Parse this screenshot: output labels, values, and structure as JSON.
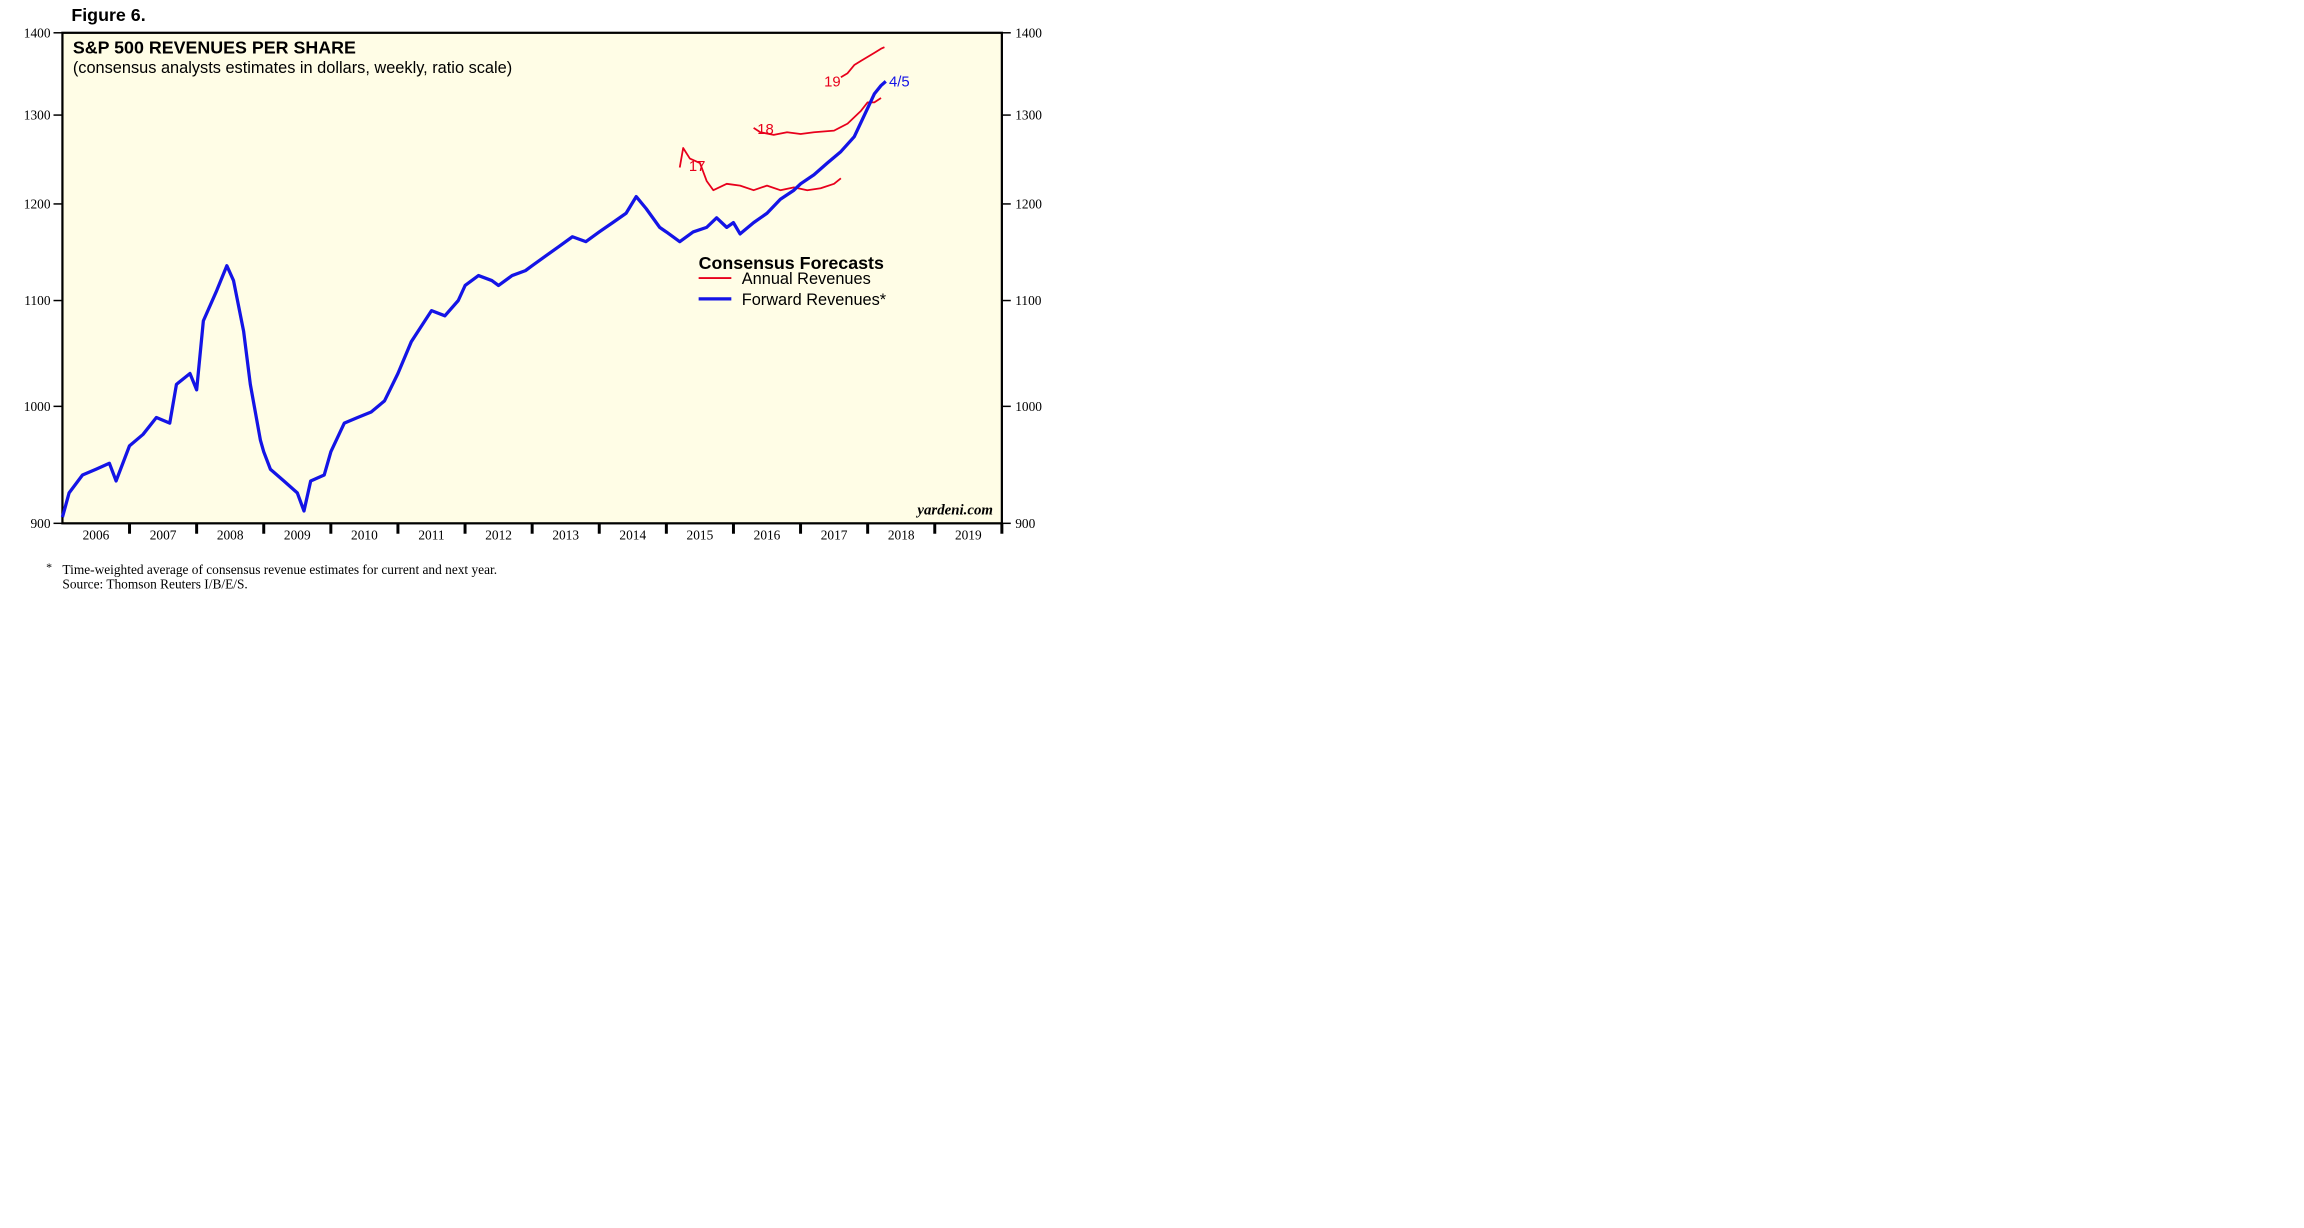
{
  "figure_label": "Figure 6.",
  "chart_data": {
    "type": "line",
    "title": "S&P 500 REVENUES PER SHARE",
    "subtitle": "(consensus analysts estimates in dollars, weekly, ratio scale)",
    "log_scale": true,
    "xlim": [
      2006,
      2020
    ],
    "xticks": [
      {
        "value": 2006.5,
        "label": "2006"
      },
      {
        "value": 2007.5,
        "label": "2007"
      },
      {
        "value": 2008.5,
        "label": "2008"
      },
      {
        "value": 2009.5,
        "label": "2009"
      },
      {
        "value": 2010.5,
        "label": "2010"
      },
      {
        "value": 2011.5,
        "label": "2011"
      },
      {
        "value": 2012.5,
        "label": "2012"
      },
      {
        "value": 2013.5,
        "label": "2013"
      },
      {
        "value": 2014.5,
        "label": "2014"
      },
      {
        "value": 2015.5,
        "label": "2015"
      },
      {
        "value": 2016.5,
        "label": "2016"
      },
      {
        "value": 2017.5,
        "label": "2017"
      },
      {
        "value": 2018.5,
        "label": "2018"
      },
      {
        "value": 2019.5,
        "label": "2019"
      }
    ],
    "ylim": [
      900,
      1400
    ],
    "yticks": [
      900,
      1000,
      1100,
      1200,
      1300,
      1400
    ],
    "legend_title": "Consensus Forecasts",
    "series": [
      {
        "name": "Annual Revenues",
        "color": "#e8001c",
        "width": 1.2,
        "x": [
          2015.2,
          2015.25,
          2015.35,
          2015.5,
          2015.6,
          2015.7,
          2015.9,
          2016.1,
          2016.3,
          2016.5,
          2016.7,
          2016.9,
          2017.1,
          2017.3,
          2017.5,
          2017.6
        ],
        "values": [
          1240,
          1262,
          1250,
          1245,
          1225,
          1215,
          1222,
          1220,
          1215,
          1220,
          1215,
          1218,
          1215,
          1217,
          1222,
          1228
        ]
      },
      {
        "name": null,
        "color": "#e8001c",
        "width": 1.2,
        "x": [
          2016.3,
          2016.4,
          2016.6,
          2016.8,
          2017.0,
          2017.2,
          2017.5,
          2017.7,
          2017.9,
          2018.0,
          2018.1,
          2018.2
        ],
        "values": [
          1285,
          1280,
          1277,
          1280,
          1278,
          1280,
          1282,
          1290,
          1305,
          1315,
          1315,
          1320
        ]
      },
      {
        "name": null,
        "color": "#e8001c",
        "width": 1.2,
        "x": [
          2017.6,
          2017.7,
          2017.8,
          2017.9,
          2018.0,
          2018.1,
          2018.2,
          2018.25
        ],
        "values": [
          1345,
          1350,
          1360,
          1365,
          1370,
          1375,
          1380,
          1382
        ]
      },
      {
        "name": "Forward Revenues*",
        "color": "#1414e6",
        "width": 2.2,
        "x": [
          2006.0,
          2006.1,
          2006.3,
          2006.5,
          2006.7,
          2006.8,
          2007.0,
          2007.2,
          2007.4,
          2007.6,
          2007.7,
          2007.9,
          2008.0,
          2008.1,
          2008.3,
          2008.45,
          2008.55,
          2008.7,
          2008.8,
          2008.95,
          2009.0,
          2009.1,
          2009.3,
          2009.5,
          2009.6,
          2009.7,
          2009.9,
          2010.0,
          2010.2,
          2010.4,
          2010.6,
          2010.8,
          2011.0,
          2011.2,
          2011.4,
          2011.5,
          2011.7,
          2011.9,
          2012.0,
          2012.2,
          2012.4,
          2012.5,
          2012.7,
          2012.9,
          2013.0,
          2013.2,
          2013.4,
          2013.6,
          2013.8,
          2014.0,
          2014.2,
          2014.4,
          2014.55,
          2014.7,
          2014.9,
          2015.0,
          2015.2,
          2015.4,
          2015.6,
          2015.75,
          2015.9,
          2016.0,
          2016.1,
          2016.3,
          2016.5,
          2016.7,
          2016.9,
          2017.0,
          2017.2,
          2017.4,
          2017.6,
          2017.8,
          2017.95,
          2018.1,
          2018.2,
          2018.27
        ],
        "values": [
          905,
          925,
          940,
          945,
          950,
          935,
          965,
          975,
          990,
          985,
          1020,
          1030,
          1015,
          1080,
          1110,
          1135,
          1120,
          1070,
          1020,
          970,
          960,
          945,
          935,
          925,
          910,
          935,
          940,
          960,
          985,
          990,
          995,
          1005,
          1030,
          1060,
          1080,
          1090,
          1085,
          1100,
          1115,
          1125,
          1120,
          1115,
          1125,
          1130,
          1135,
          1145,
          1155,
          1165,
          1160,
          1170,
          1180,
          1190,
          1208,
          1195,
          1175,
          1170,
          1160,
          1170,
          1175,
          1185,
          1175,
          1180,
          1168,
          1180,
          1190,
          1205,
          1215,
          1222,
          1232,
          1245,
          1258,
          1275,
          1300,
          1325,
          1335,
          1340
        ]
      }
    ],
    "annotations": [
      "17",
      "18",
      "19",
      "4/5"
    ],
    "source_site": "yardeni.com",
    "footnote_mark": "*",
    "footnote": "Time-weighted average of consensus revenue estimates for current and next year.",
    "source": "Source: Thomson Reuters I/B/E/S."
  }
}
